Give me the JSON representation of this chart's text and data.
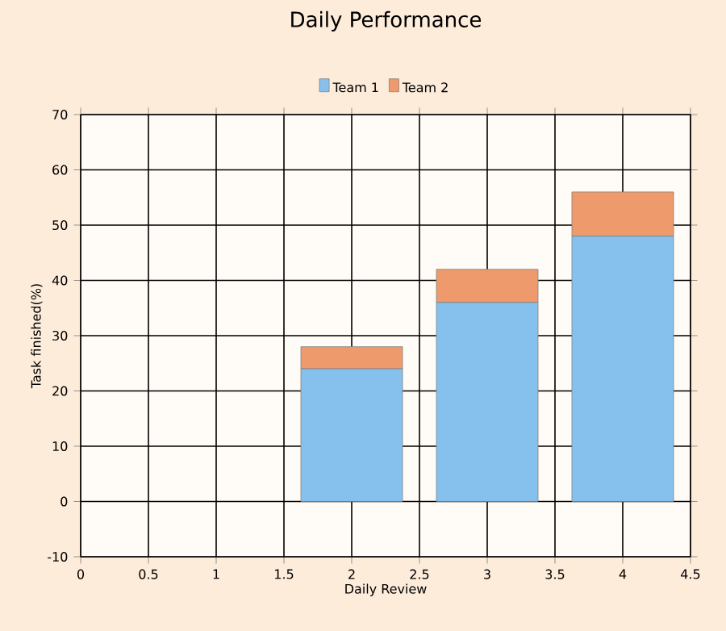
{
  "chart_data": {
    "type": "bar",
    "title": "Daily Performance",
    "xlabel": "Daily Review",
    "ylabel": "Task finished(%)",
    "stacked": true,
    "x": [
      2,
      3,
      4
    ],
    "series": [
      {
        "name": "Team 1",
        "color": "#86c1ee",
        "values": [
          24,
          36,
          48
        ]
      },
      {
        "name": "Team 2",
        "color": "#ee9a6c",
        "values": [
          4,
          6,
          8
        ]
      }
    ],
    "xlim": [
      0,
      4.5
    ],
    "xticks": [
      0,
      0.5,
      1,
      1.5,
      2,
      2.5,
      3,
      3.5,
      4,
      4.5
    ],
    "ylim": [
      -10,
      70
    ],
    "yticks": [
      -10,
      0,
      10,
      20,
      30,
      40,
      50,
      60,
      70
    ],
    "grid": true,
    "legend": "top"
  }
}
